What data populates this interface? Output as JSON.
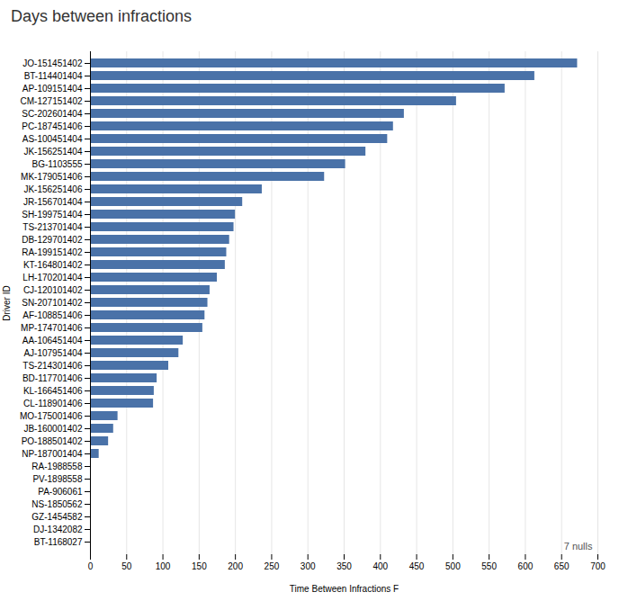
{
  "chart_data": {
    "type": "bar",
    "orientation": "horizontal",
    "title": "Days between infractions",
    "xlabel": "Time Between Infractions F",
    "ylabel": "Driver ID",
    "annotations": [
      "7 nulls"
    ],
    "categories": [
      "JO-151451402",
      "BT-114401404",
      "AP-109151404",
      "CM-127151402",
      "SC-202601404",
      "PC-187451406",
      "AS-100451404",
      "JK-156251404",
      "BG-1103555",
      "MK-179051406",
      "JK-156251406",
      "JR-156701404",
      "SH-199751404",
      "TS-213701404",
      "DB-129701402",
      "RA-199151402",
      "KT-164801402",
      "LH-170201404",
      "CJ-120101402",
      "SN-207101402",
      "AF-108851406",
      "MP-174701406",
      "AA-106451404",
      "AJ-107951404",
      "TS-214301406",
      "BD-117701406",
      "KL-166451406",
      "CL-118901406",
      "MO-175001406",
      "JB-160001402",
      "PO-188501402",
      "NP-187001404",
      "RA-1988558",
      "PV-1898558",
      "PA-906061",
      "NS-1850562",
      "GZ-1454582",
      "DJ-1342082",
      "BT-1168027"
    ],
    "values": [
      672,
      613,
      572,
      505,
      433,
      418,
      410,
      380,
      352,
      323,
      237,
      210,
      200,
      198,
      192,
      188,
      186,
      175,
      165,
      162,
      158,
      155,
      128,
      122,
      108,
      92,
      88,
      87,
      38,
      32,
      25,
      12,
      0,
      0,
      0,
      0,
      0,
      0,
      0
    ],
    "color": "#4a72a8",
    "xlim": [
      0,
      700
    ],
    "xticks": [
      0,
      50,
      100,
      150,
      200,
      250,
      300,
      350,
      400,
      450,
      500,
      550,
      600,
      650,
      700
    ],
    "grid": true
  }
}
